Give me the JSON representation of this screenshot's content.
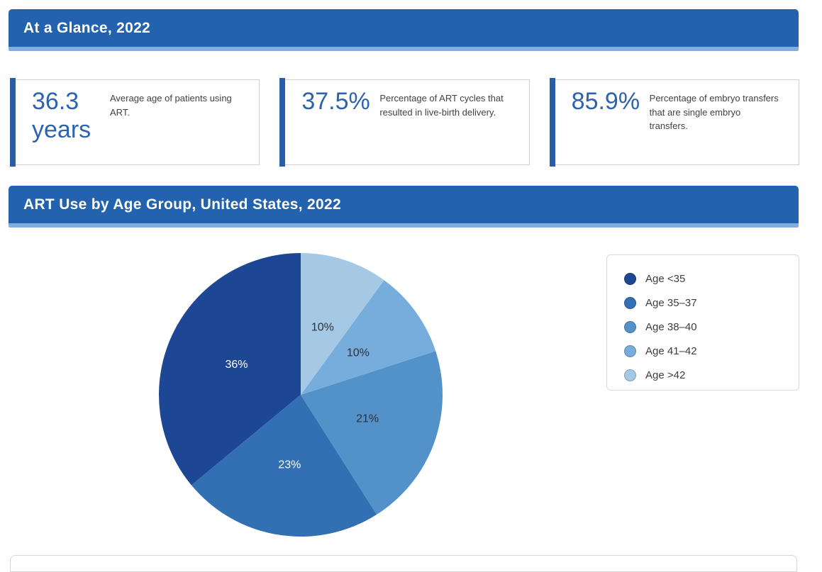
{
  "header": {
    "glance_title": "At a Glance, 2022",
    "art_use_title": "ART Use by Age Group, United States, 2022"
  },
  "stats": [
    {
      "value": "36.3\nyears",
      "description": "Average age of patients using ART."
    },
    {
      "value": "37.5%",
      "description": "Percentage of ART cycles that resulted in live-birth delivery."
    },
    {
      "value": "85.9%",
      "description": "Percentage of embryo transfers that are single embryo transfers."
    }
  ],
  "chart_data": {
    "type": "pie",
    "title": "ART Use by Age Group, United States, 2022",
    "categories": [
      "Age <35",
      "Age 35–37",
      "Age 38–40",
      "Age 41–42",
      "Age >42"
    ],
    "values": [
      36,
      23,
      21,
      10,
      10
    ],
    "slice_labels": [
      "36%",
      "23%",
      "21%",
      "10%",
      "10%"
    ],
    "slice_colors": [
      "#1d4795",
      "#336fb3",
      "#5292c8",
      "#76addc",
      "#a5c9e5"
    ],
    "slice_label_colors": [
      "#ffffff",
      "#ffffff",
      "#2f2f36",
      "#2f2f36",
      "#2f2f36"
    ],
    "legend_position": "right",
    "start_angle": "12-o'clock",
    "winding": "counterclockwise"
  },
  "colors": {
    "banner_bg": "#2262ae",
    "banner_underline": "#82aedd",
    "accent_bar": "#2a5ca8",
    "stat_number": "#2d63ae",
    "stat_desc": "#414147",
    "card_border": "#cfcfcf",
    "legend_border": "#d9d9d9",
    "legend_text": "#3d3d41",
    "bottom_box_border": "#d7d7d7",
    "page_bg": "#ffffff"
  }
}
